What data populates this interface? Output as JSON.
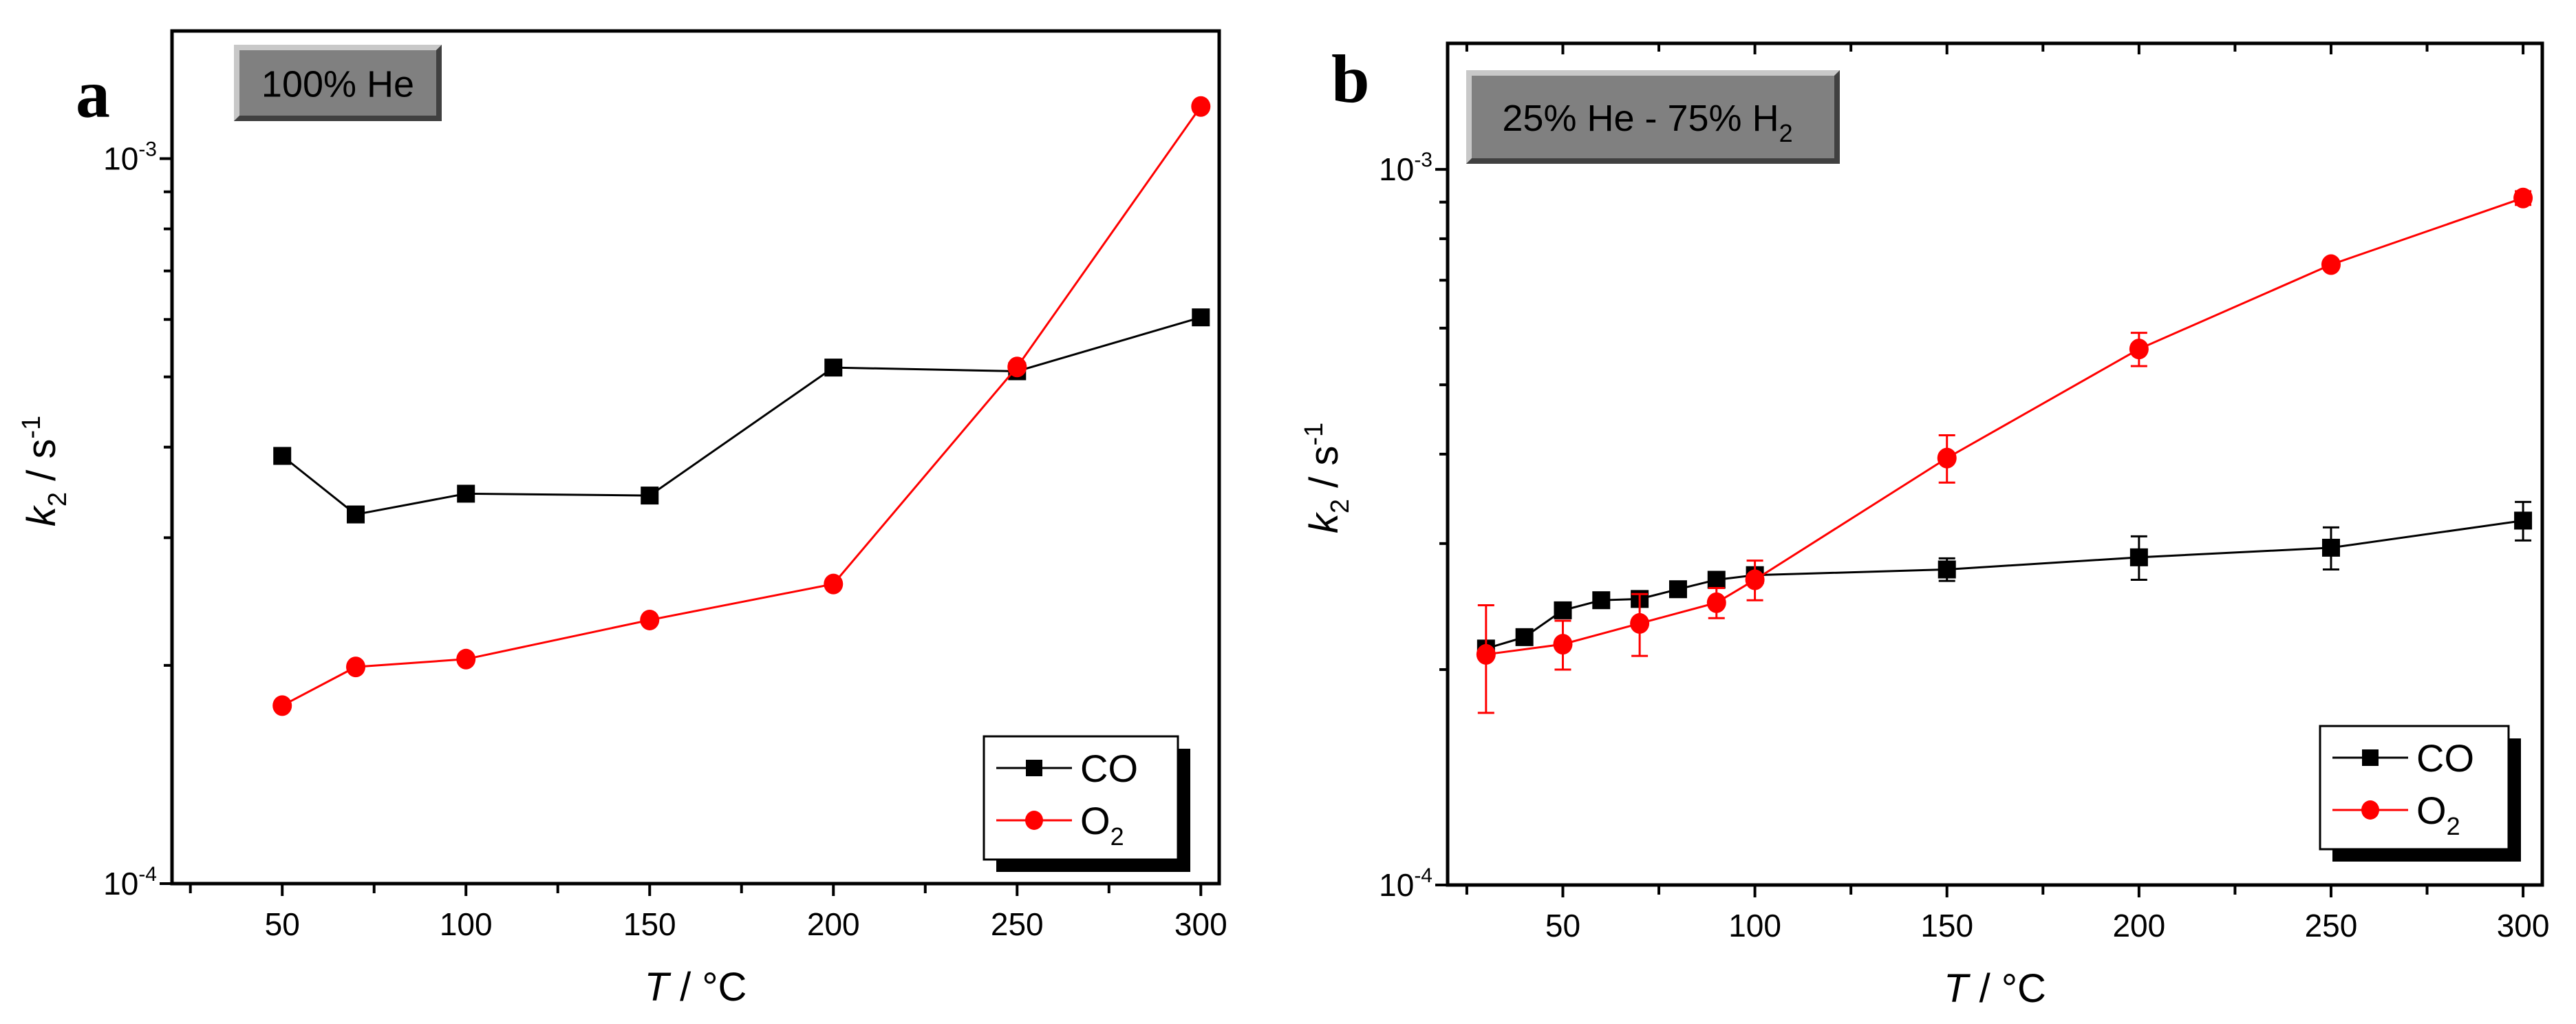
{
  "chart_data": [
    {
      "type": "line",
      "panel_label": "a",
      "annotation": "100% He",
      "xlabel": "T / °C",
      "ylabel": "k2 / s-1",
      "xlim": [
        20,
        305
      ],
      "ylim": [
        0.0001,
        0.0015
      ],
      "yscale": "log",
      "xticks": [
        50,
        100,
        150,
        200,
        250,
        300
      ],
      "xtick_labels": [
        "50",
        "100",
        "150",
        "200",
        "250",
        "300"
      ],
      "ytick_labels": [
        {
          "base": "10",
          "exp": "-3",
          "value": 0.001
        },
        {
          "base": "10",
          "exp": "-4",
          "value": 0.0001
        }
      ],
      "legend_placement": "bottom-right",
      "grid": false,
      "series": [
        {
          "name": "CO",
          "color": "#000000",
          "marker": "square",
          "x": [
            50,
            70,
            100,
            150,
            200,
            250,
            300
          ],
          "y": [
            0.000389,
            0.000323,
            0.000345,
            0.000343,
            0.000515,
            0.000509,
            0.000604
          ]
        },
        {
          "name": "O2",
          "color": "#ff0000",
          "marker": "circle",
          "x": [
            50,
            70,
            100,
            150,
            200,
            250,
            300
          ],
          "y": [
            0.000176,
            0.000199,
            0.000204,
            0.000231,
            0.000259,
            0.000516,
            0.00118
          ]
        }
      ]
    },
    {
      "type": "line",
      "panel_label": "b",
      "annotation": "25% He - 75% H2",
      "xlabel": "T / °C",
      "ylabel": "k2 / s-1",
      "xlim": [
        20,
        305
      ],
      "ylim": [
        0.0001,
        0.0015
      ],
      "yscale": "log",
      "xticks": [
        50,
        100,
        150,
        200,
        250,
        300
      ],
      "xtick_labels": [
        "50",
        "100",
        "150",
        "200",
        "250",
        "300"
      ],
      "ytick_labels": [
        {
          "base": "10",
          "exp": "-3",
          "value": 0.001
        },
        {
          "base": "10",
          "exp": "-4",
          "value": 0.0001
        }
      ],
      "legend_placement": "bottom-right",
      "grid": false,
      "series": [
        {
          "name": "CO",
          "color": "#000000",
          "marker": "square",
          "x": [
            30,
            40,
            50,
            60,
            70,
            80,
            90,
            100,
            150,
            200,
            250,
            300
          ],
          "y": [
            0.000214,
            0.000222,
            0.000242,
            0.00025,
            0.000251,
            0.000259,
            0.000267,
            0.000271,
            0.000276,
            0.000287,
            0.000296,
            0.000323
          ],
          "yerr": [
            4e-06,
            4e-06,
            5e-06,
            4e-06,
            4e-06,
            4e-06,
            4e-06,
            5e-06,
            1e-05,
            2e-05,
            2e-05,
            2e-05
          ]
        },
        {
          "name": "O2",
          "color": "#ff0000",
          "marker": "circle",
          "x": [
            30,
            50,
            70,
            90,
            100,
            150,
            200,
            250,
            300
          ],
          "y": [
            0.00021,
            0.000217,
            0.000232,
            0.000248,
            0.000267,
            0.000395,
            0.000561,
            0.000736,
            0.000912
          ],
          "yerr": [
            3.6e-05,
            1.7e-05,
            2.3e-05,
            1.2e-05,
            1.7e-05,
            3e-05,
            3e-05,
            5e-06,
            2e-05
          ]
        }
      ]
    }
  ],
  "legend_labels": [
    {
      "text": "CO",
      "sub": ""
    },
    {
      "text": "O",
      "sub": "2"
    }
  ],
  "annotation_parts": [
    {
      "text": "100% He",
      "sub": ""
    },
    {
      "text": "25% He - 75% H",
      "sub": "2"
    }
  ],
  "axis_titles": {
    "x_italic": "T",
    "x_rest": " / °C",
    "y_italic": "k",
    "y_sub": "2",
    "y_rest": " / s",
    "y_sup": "-1"
  }
}
